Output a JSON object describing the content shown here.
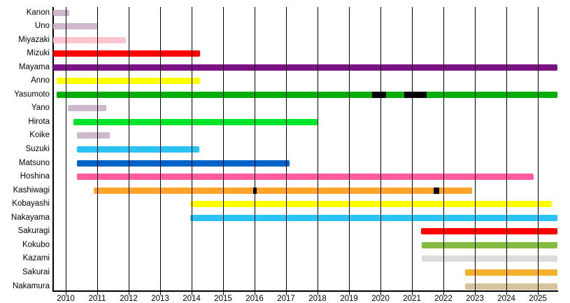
{
  "chart_data": {
    "type": "bar",
    "subtype": "timeline-gantt",
    "title": "",
    "background": "#FFFFFF",
    "axis_color": "#000000",
    "gridline_color": "#000000",
    "hiatus_color": "#000000",
    "grid": true,
    "x_axis": {
      "min": 2009.6,
      "max": 2025.62,
      "ticks": [
        2010,
        2011,
        2012,
        2013,
        2014,
        2015,
        2016,
        2017,
        2018,
        2019,
        2020,
        2021,
        2022,
        2023,
        2024,
        2025
      ]
    },
    "rows": [
      {
        "label": "Kanon",
        "color": "#CDB8CD",
        "start": 2009.6,
        "end": 2010.12
      },
      {
        "label": "Uno",
        "color": "#CDB8CD",
        "start": 2009.6,
        "end": 2011.02
      },
      {
        "label": "Miyazaki",
        "color": "#FFC5D0",
        "start": 2009.6,
        "end": 2011.91
      },
      {
        "label": "Mizuki",
        "color": "#FF0000",
        "start": 2009.6,
        "end": 2014.26
      },
      {
        "label": "Mayama",
        "color": "#7A1284",
        "start": 2009.6,
        "end": 2025.62
      },
      {
        "label": "Anno",
        "color": "#FFFF00",
        "start": 2009.71,
        "end": 2014.26
      },
      {
        "label": "Yasumoto",
        "color": "#00AE08",
        "start": 2009.71,
        "end": 2025.62,
        "breaks": [
          {
            "start": 2019.73,
            "end": 2020.17
          },
          {
            "start": 2020.76,
            "end": 2021.47
          }
        ]
      },
      {
        "label": "Yano",
        "color": "#CDB8CD",
        "start": 2010.07,
        "end": 2011.28
      },
      {
        "label": "Hirota",
        "color": "#00E42A",
        "start": 2010.24,
        "end": 2018.0
      },
      {
        "label": "Koike",
        "color": "#CDB8CD",
        "start": 2010.36,
        "end": 2011.39
      },
      {
        "label": "Suzuki",
        "color": "#2AC3F4",
        "start": 2010.36,
        "end": 2014.24
      },
      {
        "label": "Matsuno",
        "color": "#0162C8",
        "start": 2010.36,
        "end": 2017.11
      },
      {
        "label": "Hoshina",
        "color": "#FC5C9F",
        "start": 2010.36,
        "end": 2024.86
      },
      {
        "label": "Kashiwagi",
        "color": "#FCA42C",
        "start": 2010.88,
        "end": 2022.91,
        "breaks": [
          {
            "start": 2015.95,
            "end": 2016.06
          },
          {
            "start": 2021.69,
            "end": 2021.87
          }
        ]
      },
      {
        "label": "Kobayashi",
        "color": "#FFFF00",
        "start": 2013.96,
        "end": 2025.45
      },
      {
        "label": "Nakayama",
        "color": "#2AC3F4",
        "start": 2013.96,
        "end": 2025.62
      },
      {
        "label": "Sakuragi",
        "color": "#FF0000",
        "start": 2021.28,
        "end": 2025.62
      },
      {
        "label": "Kokubo",
        "color": "#84BC40",
        "start": 2021.31,
        "end": 2025.62
      },
      {
        "label": "Kazami",
        "color": "#DCDCDC",
        "start": 2021.31,
        "end": 2025.62
      },
      {
        "label": "Sakurai",
        "color": "#F4B02A",
        "start": 2022.68,
        "end": 2025.62
      },
      {
        "label": "Nakamura",
        "color": "#D6C39C",
        "start": 2022.68,
        "end": 2025.62
      }
    ]
  }
}
